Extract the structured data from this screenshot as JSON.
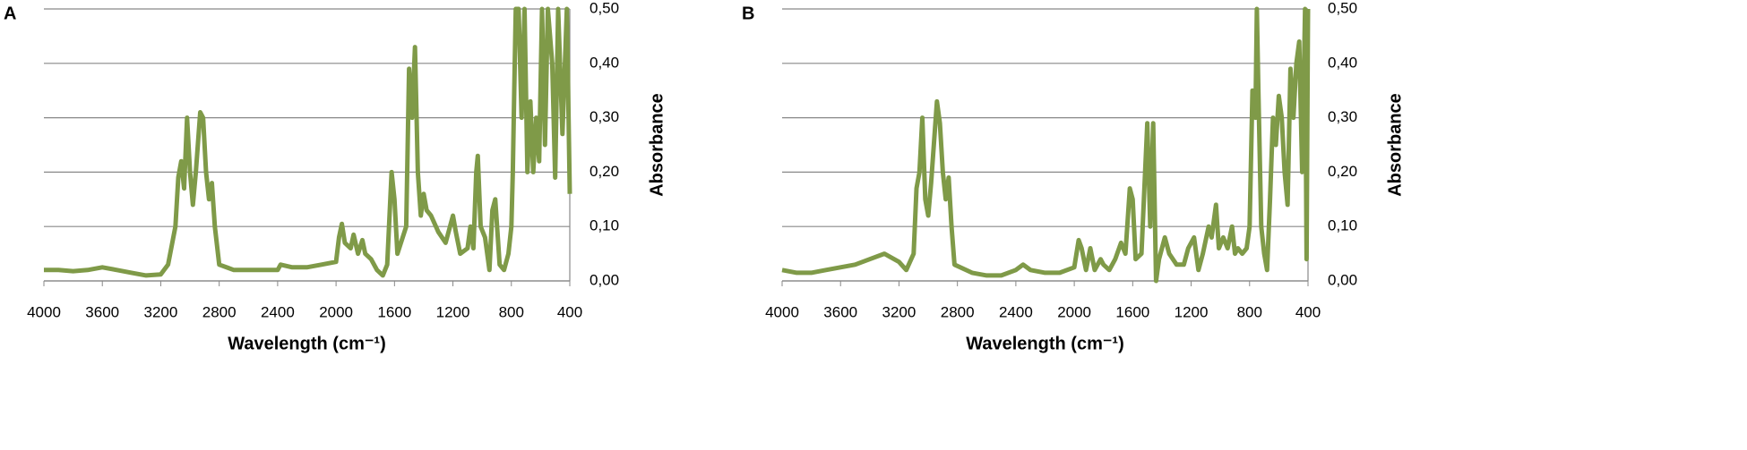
{
  "chart_data": [
    {
      "type": "line",
      "panel_label": "A",
      "xlabel": "Wavelength (cm⁻¹)",
      "ylabel": "Absorbance",
      "xlim": [
        4000,
        400
      ],
      "ylim": [
        0,
        0.5
      ],
      "xticks": [
        4000,
        3600,
        3200,
        2800,
        2400,
        2000,
        1600,
        1200,
        800,
        400
      ],
      "yticks": [
        {
          "value": 0,
          "label": "0,00"
        },
        {
          "value": 0.1,
          "label": "0,10"
        },
        {
          "value": 0.2,
          "label": "0,20"
        },
        {
          "value": 0.3,
          "label": "0,30"
        },
        {
          "value": 0.4,
          "label": "0,40"
        },
        {
          "value": 0.5,
          "label": "0,50"
        }
      ],
      "grid": true,
      "x": [
        4000,
        3900,
        3800,
        3700,
        3600,
        3500,
        3400,
        3300,
        3200,
        3150,
        3100,
        3080,
        3060,
        3040,
        3020,
        3000,
        2980,
        2960,
        2930,
        2910,
        2890,
        2870,
        2850,
        2830,
        2800,
        2700,
        2600,
        2500,
        2400,
        2380,
        2300,
        2200,
        2100,
        2000,
        1980,
        1960,
        1940,
        1900,
        1880,
        1850,
        1820,
        1800,
        1760,
        1720,
        1680,
        1650,
        1620,
        1600,
        1580,
        1520,
        1500,
        1480,
        1460,
        1440,
        1420,
        1400,
        1380,
        1350,
        1300,
        1250,
        1200,
        1180,
        1150,
        1100,
        1080,
        1060,
        1040,
        1030,
        1010,
        980,
        950,
        930,
        910,
        880,
        850,
        820,
        800,
        790,
        780,
        770,
        750,
        730,
        710,
        690,
        670,
        650,
        630,
        610,
        590,
        570,
        550,
        520,
        500,
        480,
        450,
        420,
        400
      ],
      "series": [
        {
          "color": "#7f9a48",
          "values": [
            0.02,
            0.02,
            0.018,
            0.02,
            0.025,
            0.02,
            0.015,
            0.01,
            0.012,
            0.03,
            0.1,
            0.19,
            0.22,
            0.17,
            0.3,
            0.2,
            0.14,
            0.2,
            0.31,
            0.3,
            0.2,
            0.15,
            0.18,
            0.1,
            0.03,
            0.02,
            0.02,
            0.02,
            0.02,
            0.03,
            0.025,
            0.025,
            0.03,
            0.035,
            0.08,
            0.105,
            0.07,
            0.06,
            0.085,
            0.05,
            0.075,
            0.05,
            0.04,
            0.02,
            0.01,
            0.03,
            0.2,
            0.15,
            0.05,
            0.1,
            0.39,
            0.3,
            0.43,
            0.2,
            0.12,
            0.16,
            0.13,
            0.12,
            0.09,
            0.07,
            0.12,
            0.09,
            0.05,
            0.06,
            0.1,
            0.06,
            0.2,
            0.23,
            0.1,
            0.08,
            0.02,
            0.13,
            0.15,
            0.03,
            0.02,
            0.05,
            0.1,
            0.2,
            0.35,
            0.5,
            0.5,
            0.3,
            0.5,
            0.2,
            0.33,
            0.2,
            0.3,
            0.22,
            0.5,
            0.25,
            0.5,
            0.4,
            0.19,
            0.5,
            0.27,
            0.5,
            0.16
          ]
        }
      ]
    },
    {
      "type": "line",
      "panel_label": "B",
      "xlabel": "Wavelength (cm⁻¹)",
      "ylabel": "Absorbance",
      "xlim": [
        4000,
        400
      ],
      "ylim": [
        0,
        0.5
      ],
      "xticks": [
        4000,
        3600,
        3200,
        2800,
        2400,
        2000,
        1600,
        1200,
        800,
        400
      ],
      "yticks": [
        {
          "value": 0,
          "label": "0,00"
        },
        {
          "value": 0.1,
          "label": "0,10"
        },
        {
          "value": 0.2,
          "label": "0,20"
        },
        {
          "value": 0.3,
          "label": "0,30"
        },
        {
          "value": 0.4,
          "label": "0,40"
        },
        {
          "value": 0.5,
          "label": "0,50"
        }
      ],
      "grid": true,
      "x": [
        4000,
        3900,
        3800,
        3700,
        3600,
        3500,
        3400,
        3300,
        3200,
        3150,
        3100,
        3080,
        3060,
        3040,
        3020,
        3000,
        2980,
        2940,
        2920,
        2900,
        2880,
        2860,
        2840,
        2820,
        2700,
        2600,
        2500,
        2400,
        2350,
        2300,
        2200,
        2100,
        2000,
        1970,
        1950,
        1920,
        1890,
        1860,
        1820,
        1800,
        1760,
        1720,
        1680,
        1650,
        1620,
        1600,
        1580,
        1540,
        1500,
        1480,
        1460,
        1440,
        1420,
        1380,
        1350,
        1300,
        1250,
        1220,
        1180,
        1150,
        1120,
        1080,
        1060,
        1030,
        1010,
        980,
        950,
        920,
        900,
        880,
        850,
        820,
        800,
        780,
        760,
        750,
        740,
        720,
        700,
        680,
        660,
        640,
        620,
        600,
        580,
        560,
        540,
        520,
        500,
        480,
        460,
        440,
        420,
        410,
        400
      ],
      "series": [
        {
          "color": "#7f9a48",
          "values": [
            0.02,
            0.015,
            0.015,
            0.02,
            0.025,
            0.03,
            0.04,
            0.05,
            0.035,
            0.02,
            0.05,
            0.17,
            0.2,
            0.3,
            0.15,
            0.12,
            0.18,
            0.33,
            0.29,
            0.2,
            0.15,
            0.19,
            0.1,
            0.03,
            0.015,
            0.01,
            0.01,
            0.02,
            0.03,
            0.02,
            0.015,
            0.015,
            0.025,
            0.075,
            0.06,
            0.02,
            0.06,
            0.02,
            0.04,
            0.03,
            0.02,
            0.04,
            0.07,
            0.05,
            0.17,
            0.15,
            0.04,
            0.05,
            0.29,
            0.1,
            0.29,
            0.0,
            0.04,
            0.08,
            0.05,
            0.03,
            0.03,
            0.06,
            0.08,
            0.02,
            0.05,
            0.1,
            0.08,
            0.14,
            0.06,
            0.08,
            0.06,
            0.1,
            0.05,
            0.06,
            0.05,
            0.06,
            0.1,
            0.35,
            0.3,
            0.5,
            0.35,
            0.1,
            0.05,
            0.02,
            0.15,
            0.3,
            0.25,
            0.34,
            0.3,
            0.2,
            0.14,
            0.39,
            0.3,
            0.4,
            0.44,
            0.2,
            0.5,
            0.04,
            0.5
          ]
        }
      ]
    }
  ]
}
